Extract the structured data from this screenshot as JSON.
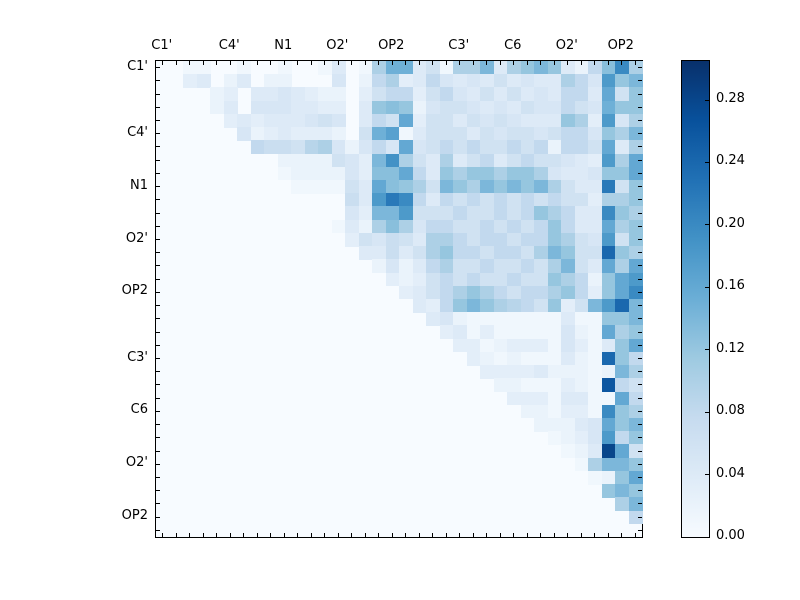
{
  "chart_data": {
    "type": "heatmap",
    "title": "",
    "xlabel": "",
    "ylabel": "",
    "grid_size": 36,
    "orientation": "upper-triangular",
    "x_tick_labels": [
      "C1'",
      "C4'",
      "N1",
      "O2'",
      "OP2",
      "C3'",
      "C6",
      "O2'",
      "OP2"
    ],
    "y_tick_labels": [
      "C1'",
      "C4'",
      "N1",
      "O2'",
      "OP2",
      "C3'",
      "C6",
      "O2'",
      "OP2"
    ],
    "tick_label_cells": [
      0,
      5,
      9,
      13,
      17,
      22,
      26,
      30,
      34
    ],
    "value_scale": 0.01,
    "vmin": 0.0,
    "vmax": 0.305,
    "colormap": "Blues",
    "colormap_stops": [
      [
        0.0,
        "#f7fbff"
      ],
      [
        0.125,
        "#deebf7"
      ],
      [
        0.25,
        "#c6dbef"
      ],
      [
        0.375,
        "#9ecae1"
      ],
      [
        0.5,
        "#6baed6"
      ],
      [
        0.625,
        "#4292c6"
      ],
      [
        0.75,
        "#2171b5"
      ],
      [
        0.875,
        "#08519c"
      ],
      [
        1.0,
        "#08306b"
      ]
    ],
    "colorbar_ticks": [
      "0.00",
      "0.04",
      "0.08",
      "0.12",
      "0.16",
      "0.20",
      "0.24",
      "0.28"
    ],
    "colorbar_tick_values": [
      0.0,
      0.04,
      0.08,
      0.12,
      0.16,
      0.2,
      0.24,
      0.28
    ],
    "matrix": [
      [
        0,
        0,
        1,
        1,
        0,
        0,
        1,
        0,
        0,
        1,
        0,
        0,
        1,
        4,
        0,
        1,
        10,
        15,
        15,
        4,
        6,
        1,
        10,
        10,
        14,
        4,
        10,
        12,
        14,
        12,
        4,
        2,
        8,
        13,
        20,
        10
      ],
      [
        0,
        0,
        3,
        4,
        0,
        2,
        4,
        0,
        2,
        2,
        0,
        0,
        0,
        5,
        0,
        2,
        8,
        10,
        3,
        4,
        8,
        5,
        4,
        5,
        4,
        6,
        4,
        5,
        4,
        4,
        10,
        8,
        5,
        18,
        12,
        14
      ],
      [
        0,
        0,
        0,
        0,
        2,
        3,
        0,
        4,
        4,
        5,
        4,
        3,
        2,
        2,
        0,
        3,
        6,
        8,
        8,
        3,
        6,
        8,
        5,
        4,
        6,
        4,
        6,
        4,
        5,
        4,
        8,
        8,
        4,
        16,
        6,
        12
      ],
      [
        0,
        0,
        0,
        0,
        2,
        4,
        0,
        5,
        5,
        5,
        4,
        4,
        3,
        3,
        0,
        4,
        12,
        13,
        12,
        2,
        5,
        6,
        6,
        5,
        4,
        5,
        4,
        6,
        5,
        5,
        8,
        6,
        5,
        15,
        12,
        12
      ],
      [
        0,
        0,
        0,
        0,
        0,
        3,
        4,
        3,
        4,
        4,
        4,
        5,
        6,
        5,
        0,
        4,
        8,
        6,
        16,
        3,
        6,
        6,
        4,
        6,
        5,
        6,
        5,
        4,
        4,
        4,
        12,
        10,
        3,
        18,
        5,
        10
      ],
      [
        0,
        0,
        0,
        0,
        0,
        0,
        5,
        2,
        3,
        4,
        3,
        3,
        3,
        2,
        0,
        6,
        15,
        17,
        1,
        4,
        6,
        6,
        6,
        4,
        6,
        5,
        6,
        6,
        5,
        6,
        8,
        8,
        5,
        12,
        10,
        14
      ],
      [
        0,
        0,
        0,
        0,
        0,
        0,
        0,
        8,
        7,
        7,
        6,
        9,
        10,
        5,
        2,
        5,
        8,
        5,
        16,
        5,
        6,
        8,
        6,
        8,
        6,
        6,
        8,
        6,
        8,
        2,
        8,
        8,
        6,
        16,
        4,
        10
      ],
      [
        0,
        0,
        0,
        0,
        0,
        0,
        0,
        0,
        0,
        2,
        2,
        2,
        2,
        6,
        5,
        3,
        14,
        19,
        10,
        6,
        4,
        10,
        4,
        6,
        8,
        4,
        6,
        8,
        6,
        6,
        5,
        4,
        3,
        18,
        10,
        16
      ],
      [
        0,
        0,
        0,
        0,
        0,
        0,
        0,
        0,
        0,
        1,
        2,
        2,
        2,
        2,
        5,
        3,
        13,
        13,
        16,
        8,
        4,
        12,
        10,
        12,
        12,
        10,
        12,
        12,
        10,
        5,
        4,
        4,
        5,
        12,
        12,
        16
      ],
      [
        0,
        0,
        0,
        0,
        0,
        0,
        0,
        0,
        0,
        0,
        1,
        1,
        1,
        1,
        6,
        4,
        16,
        13,
        12,
        10,
        6,
        14,
        12,
        10,
        14,
        12,
        14,
        12,
        14,
        10,
        6,
        4,
        4,
        22,
        6,
        12
      ],
      [
        0,
        0,
        0,
        0,
        0,
        0,
        0,
        0,
        0,
        0,
        0,
        0,
        0,
        0,
        7,
        4,
        18,
        22,
        20,
        8,
        4,
        8,
        6,
        8,
        6,
        8,
        6,
        8,
        6,
        8,
        6,
        6,
        3,
        10,
        10,
        12
      ],
      [
        0,
        0,
        0,
        0,
        0,
        0,
        0,
        0,
        0,
        0,
        0,
        0,
        0,
        0,
        5,
        3,
        14,
        14,
        18,
        6,
        6,
        6,
        8,
        6,
        6,
        8,
        6,
        8,
        12,
        10,
        8,
        4,
        4,
        20,
        12,
        10
      ],
      [
        0,
        0,
        0,
        0,
        0,
        0,
        0,
        0,
        0,
        0,
        0,
        0,
        0,
        1,
        4,
        2,
        10,
        13,
        10,
        5,
        8,
        8,
        6,
        6,
        8,
        6,
        8,
        6,
        8,
        12,
        8,
        4,
        4,
        16,
        10,
        12
      ],
      [
        0,
        0,
        0,
        0,
        0,
        0,
        0,
        0,
        0,
        0,
        0,
        0,
        0,
        0,
        3,
        6,
        5,
        7,
        6,
        4,
        10,
        10,
        8,
        6,
        8,
        8,
        6,
        8,
        8,
        12,
        10,
        6,
        5,
        18,
        6,
        12
      ],
      [
        0,
        0,
        0,
        0,
        0,
        0,
        0,
        0,
        0,
        0,
        0,
        0,
        0,
        0,
        0,
        4,
        4,
        7,
        4,
        6,
        10,
        12,
        8,
        8,
        6,
        8,
        8,
        6,
        10,
        14,
        12,
        6,
        6,
        24,
        12,
        10
      ],
      [
        0,
        0,
        0,
        0,
        0,
        0,
        0,
        0,
        0,
        0,
        0,
        0,
        0,
        0,
        0,
        0,
        2,
        5,
        2,
        4,
        8,
        10,
        6,
        6,
        8,
        6,
        6,
        8,
        6,
        10,
        14,
        6,
        4,
        16,
        10,
        16
      ],
      [
        0,
        0,
        0,
        0,
        0,
        0,
        0,
        0,
        0,
        0,
        0,
        0,
        0,
        0,
        0,
        0,
        0,
        3,
        2,
        3,
        6,
        8,
        6,
        8,
        6,
        6,
        8,
        6,
        6,
        12,
        10,
        8,
        2,
        12,
        16,
        18
      ],
      [
        0,
        0,
        0,
        0,
        0,
        0,
        0,
        0,
        0,
        0,
        0,
        0,
        0,
        0,
        0,
        0,
        0,
        0,
        3,
        4,
        6,
        8,
        10,
        12,
        10,
        8,
        6,
        8,
        8,
        10,
        12,
        8,
        3,
        12,
        16,
        20
      ],
      [
        0,
        0,
        0,
        0,
        0,
        0,
        0,
        0,
        0,
        0,
        0,
        0,
        0,
        0,
        0,
        0,
        0,
        0,
        0,
        4,
        3,
        8,
        12,
        14,
        12,
        10,
        9,
        8,
        6,
        12,
        3,
        6,
        14,
        18,
        24,
        14
      ],
      [
        0,
        0,
        0,
        0,
        0,
        0,
        0,
        0,
        0,
        0,
        0,
        0,
        0,
        0,
        0,
        0,
        0,
        0,
        0,
        0,
        4,
        5,
        2,
        1,
        1,
        1,
        1,
        1,
        1,
        1,
        4,
        1,
        1,
        12,
        12,
        14
      ],
      [
        0,
        0,
        0,
        0,
        0,
        0,
        0,
        0,
        0,
        0,
        0,
        0,
        0,
        0,
        0,
        0,
        0,
        0,
        0,
        0,
        0,
        3,
        4,
        1,
        3,
        1,
        1,
        1,
        1,
        1,
        5,
        2,
        1,
        16,
        10,
        12
      ],
      [
        0,
        0,
        0,
        0,
        0,
        0,
        0,
        0,
        0,
        0,
        0,
        0,
        0,
        0,
        0,
        0,
        0,
        0,
        0,
        0,
        0,
        0,
        3,
        3,
        1,
        2,
        3,
        3,
        3,
        1,
        5,
        3,
        1,
        4,
        12,
        16
      ],
      [
        0,
        0,
        0,
        0,
        0,
        0,
        0,
        0,
        0,
        0,
        0,
        0,
        0,
        0,
        0,
        0,
        0,
        0,
        0,
        0,
        0,
        0,
        0,
        3,
        2,
        1,
        2,
        1,
        1,
        1,
        4,
        2,
        1,
        24,
        12,
        8
      ],
      [
        0,
        0,
        0,
        0,
        0,
        0,
        0,
        0,
        0,
        0,
        0,
        0,
        0,
        0,
        0,
        0,
        0,
        0,
        0,
        0,
        0,
        0,
        0,
        0,
        3,
        3,
        3,
        3,
        4,
        2,
        2,
        2,
        1,
        2,
        14,
        10
      ],
      [
        0,
        0,
        0,
        0,
        0,
        0,
        0,
        0,
        0,
        0,
        0,
        0,
        0,
        0,
        0,
        0,
        0,
        0,
        0,
        0,
        0,
        0,
        0,
        0,
        0,
        2,
        2,
        1,
        1,
        1,
        3,
        2,
        1,
        26,
        8,
        6
      ],
      [
        0,
        0,
        0,
        0,
        0,
        0,
        0,
        0,
        0,
        0,
        0,
        0,
        0,
        0,
        0,
        0,
        0,
        0,
        0,
        0,
        0,
        0,
        0,
        0,
        0,
        0,
        3,
        3,
        3,
        1,
        4,
        4,
        1,
        1,
        16,
        8
      ],
      [
        0,
        0,
        0,
        0,
        0,
        0,
        0,
        0,
        0,
        0,
        0,
        0,
        0,
        0,
        0,
        0,
        0,
        0,
        0,
        0,
        0,
        0,
        0,
        0,
        0,
        0,
        0,
        2,
        2,
        1,
        3,
        3,
        1,
        20,
        12,
        10
      ],
      [
        0,
        0,
        0,
        0,
        0,
        0,
        0,
        0,
        0,
        0,
        0,
        0,
        0,
        0,
        0,
        0,
        0,
        0,
        0,
        0,
        0,
        0,
        0,
        0,
        0,
        0,
        0,
        0,
        2,
        2,
        2,
        4,
        5,
        16,
        12,
        14
      ],
      [
        0,
        0,
        0,
        0,
        0,
        0,
        0,
        0,
        0,
        0,
        0,
        0,
        0,
        0,
        0,
        0,
        0,
        0,
        0,
        0,
        0,
        0,
        0,
        0,
        0,
        0,
        0,
        0,
        0,
        1,
        2,
        3,
        5,
        18,
        8,
        12
      ],
      [
        0,
        0,
        0,
        0,
        0,
        0,
        0,
        0,
        0,
        0,
        0,
        0,
        0,
        0,
        0,
        0,
        0,
        0,
        0,
        0,
        0,
        0,
        0,
        0,
        0,
        0,
        0,
        0,
        0,
        0,
        1,
        2,
        4,
        28,
        16,
        6
      ],
      [
        0,
        0,
        0,
        0,
        0,
        0,
        0,
        0,
        0,
        0,
        0,
        0,
        0,
        0,
        0,
        0,
        0,
        0,
        0,
        0,
        0,
        0,
        0,
        0,
        0,
        0,
        0,
        0,
        0,
        0,
        0,
        1,
        10,
        14,
        14,
        12
      ],
      [
        0,
        0,
        0,
        0,
        0,
        0,
        0,
        0,
        0,
        0,
        0,
        0,
        0,
        0,
        0,
        0,
        0,
        0,
        0,
        0,
        0,
        0,
        0,
        0,
        0,
        0,
        0,
        0,
        0,
        0,
        0,
        0,
        1,
        2,
        12,
        16
      ],
      [
        0,
        0,
        0,
        0,
        0,
        0,
        0,
        0,
        0,
        0,
        0,
        0,
        0,
        0,
        0,
        0,
        0,
        0,
        0,
        0,
        0,
        0,
        0,
        0,
        0,
        0,
        0,
        0,
        0,
        0,
        0,
        0,
        0,
        12,
        14,
        12
      ],
      [
        0,
        0,
        0,
        0,
        0,
        0,
        0,
        0,
        0,
        0,
        0,
        0,
        0,
        0,
        0,
        0,
        0,
        0,
        0,
        0,
        0,
        0,
        0,
        0,
        0,
        0,
        0,
        0,
        0,
        0,
        0,
        0,
        0,
        0,
        10,
        14
      ],
      [
        0,
        0,
        0,
        0,
        0,
        0,
        0,
        0,
        0,
        0,
        0,
        0,
        0,
        0,
        0,
        0,
        0,
        0,
        0,
        0,
        0,
        0,
        0,
        0,
        0,
        0,
        0,
        0,
        0,
        0,
        0,
        0,
        0,
        0,
        0,
        8
      ],
      [
        0,
        0,
        0,
        0,
        0,
        0,
        0,
        0,
        0,
        0,
        0,
        0,
        0,
        0,
        0,
        0,
        0,
        0,
        0,
        0,
        0,
        0,
        0,
        0,
        0,
        0,
        0,
        0,
        0,
        0,
        0,
        0,
        0,
        0,
        0,
        0
      ]
    ]
  }
}
